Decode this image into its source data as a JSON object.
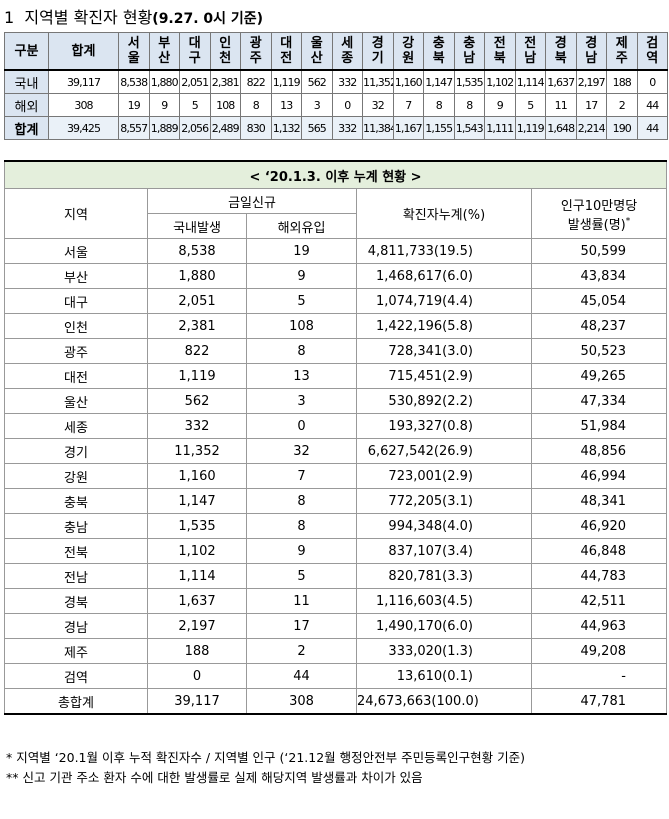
{
  "title": {
    "number": "1",
    "text": "지역별 확진자 현황",
    "note": "(9.27. 0시 기준)"
  },
  "table1": {
    "header": [
      "구분",
      "합계",
      "서울",
      "부산",
      "대구",
      "인천",
      "광주",
      "대전",
      "울산",
      "세종",
      "경기",
      "강원",
      "충북",
      "충남",
      "전북",
      "전남",
      "경북",
      "경남",
      "제주",
      "검역"
    ],
    "rows": [
      [
        "국내",
        "39,117",
        "8,538",
        "1,880",
        "2,051",
        "2,381",
        "822",
        "1,119",
        "562",
        "332",
        "11,352",
        "1,160",
        "1,147",
        "1,535",
        "1,102",
        "1,114",
        "1,637",
        "2,197",
        "188",
        "0"
      ],
      [
        "해외",
        "308",
        "19",
        "9",
        "5",
        "108",
        "8",
        "13",
        "3",
        "0",
        "32",
        "7",
        "8",
        "8",
        "9",
        "5",
        "11",
        "17",
        "2",
        "44"
      ],
      [
        "합계",
        "39,425",
        "8,557",
        "1,889",
        "2,056",
        "2,489",
        "830",
        "1,132",
        "565",
        "332",
        "11,384",
        "1,167",
        "1,155",
        "1,543",
        "1,111",
        "1,119",
        "1,648",
        "2,214",
        "190",
        "44"
      ]
    ]
  },
  "table2": {
    "caption": "< ‘20.1.3. 이후 누계 현황 >",
    "headers": {
      "region": "지역",
      "today": "금일신규",
      "domestic": "국내발생",
      "overseas": "해외유입",
      "cumulative": "확진자누계(%)",
      "rate_line1": "인구10만명당",
      "rate_line2": "발생률(명)",
      "rate_mark": "*"
    },
    "rows": [
      [
        "서울",
        "8,538",
        "19",
        "4,811,733(19.5)",
        "50,599"
      ],
      [
        "부산",
        "1,880",
        "9",
        "1,468,617(6.0)",
        "43,834"
      ],
      [
        "대구",
        "2,051",
        "5",
        "1,074,719(4.4)",
        "45,054"
      ],
      [
        "인천",
        "2,381",
        "108",
        "1,422,196(5.8)",
        "48,237"
      ],
      [
        "광주",
        "822",
        "8",
        "728,341(3.0)",
        "50,523"
      ],
      [
        "대전",
        "1,119",
        "13",
        "715,451(2.9)",
        "49,265"
      ],
      [
        "울산",
        "562",
        "3",
        "530,892(2.2)",
        "47,334"
      ],
      [
        "세종",
        "332",
        "0",
        "193,327(0.8)",
        "51,984"
      ],
      [
        "경기",
        "11,352",
        "32",
        "6,627,542(26.9)",
        "48,856"
      ],
      [
        "강원",
        "1,160",
        "7",
        "723,001(2.9)",
        "46,994"
      ],
      [
        "충북",
        "1,147",
        "8",
        "772,205(3.1)",
        "48,341"
      ],
      [
        "충남",
        "1,535",
        "8",
        "994,348(4.0)",
        "46,920"
      ],
      [
        "전북",
        "1,102",
        "9",
        "837,107(3.4)",
        "46,848"
      ],
      [
        "전남",
        "1,114",
        "5",
        "820,781(3.3)",
        "44,783"
      ],
      [
        "경북",
        "1,637",
        "11",
        "1,116,603(4.5)",
        "42,511"
      ],
      [
        "경남",
        "2,197",
        "17",
        "1,490,170(6.0)",
        "44,963"
      ],
      [
        "제주",
        "188",
        "2",
        "333,020(1.3)",
        "49,208"
      ],
      [
        "검역",
        "0",
        "44",
        "13,610(0.1)",
        "-"
      ],
      [
        "총합계",
        "39,117",
        "308",
        "24,673,663(100.0)",
        "47,781"
      ]
    ]
  },
  "footnotes": [
    "* 지역별 ‘20.1월 이후 누적 확진자수 / 지역별 인구 (‘21.12월 행정안전부 주민등록인구현황 기준)",
    "** 신고 기관 주소 환자 수에 대한 발생률로 실제 해당지역 발생률과 차이가 있음"
  ]
}
